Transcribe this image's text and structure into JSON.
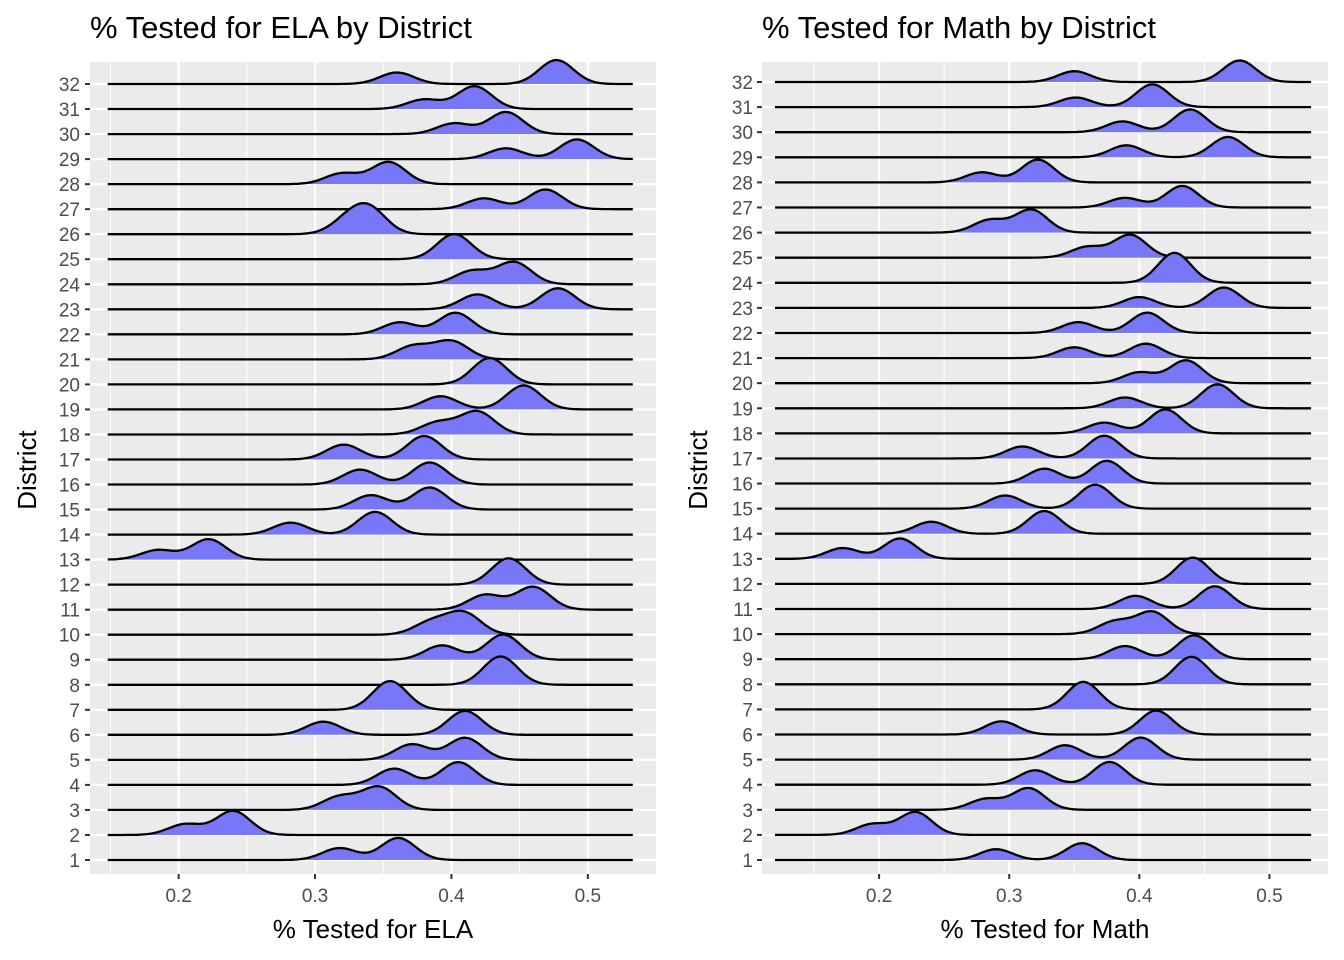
{
  "chart_data": [
    {
      "type": "ridgeline",
      "title": "% Tested for ELA by District",
      "xlabel": "% Tested for ELA",
      "ylabel": "District",
      "xlim": [
        0.135,
        0.55
      ],
      "x_ticks": [
        0.2,
        0.3,
        0.4,
        0.5
      ],
      "x_tick_labels": [
        "0.2",
        "0.3",
        "0.4",
        "0.5"
      ],
      "density_range": [
        0.148,
        0.533
      ],
      "grid": true,
      "fill_color": "#7777f7",
      "districts": [
        "1",
        "2",
        "3",
        "4",
        "5",
        "6",
        "7",
        "8",
        "9",
        "10",
        "11",
        "12",
        "13",
        "14",
        "15",
        "16",
        "17",
        "18",
        "19",
        "20",
        "21",
        "22",
        "23",
        "24",
        "25",
        "26",
        "27",
        "28",
        "29",
        "30",
        "31",
        "32"
      ],
      "series": [
        {
          "district": "1",
          "peaks": [
            {
              "x": 0.318,
              "h": 0.5
            },
            {
              "x": 0.361,
              "h": 0.92
            }
          ]
        },
        {
          "district": "2",
          "peaks": [
            {
              "x": 0.205,
              "h": 0.45
            },
            {
              "x": 0.24,
              "h": 1.0
            }
          ]
        },
        {
          "district": "3",
          "peaks": [
            {
              "x": 0.318,
              "h": 0.55
            },
            {
              "x": 0.347,
              "h": 0.95
            }
          ]
        },
        {
          "district": "4",
          "peaks": [
            {
              "x": 0.358,
              "h": 0.68
            },
            {
              "x": 0.405,
              "h": 0.95
            }
          ]
        },
        {
          "district": "5",
          "peaks": [
            {
              "x": 0.371,
              "h": 0.65
            },
            {
              "x": 0.41,
              "h": 0.92
            }
          ]
        },
        {
          "district": "6",
          "peaks": [
            {
              "x": 0.306,
              "h": 0.55
            },
            {
              "x": 0.41,
              "h": 1.0
            }
          ]
        },
        {
          "district": "7",
          "peaks": [
            {
              "x": 0.355,
              "h": 1.2
            }
          ]
        },
        {
          "district": "8",
          "peaks": [
            {
              "x": 0.436,
              "h": 1.18
            }
          ]
        },
        {
          "district": "9",
          "peaks": [
            {
              "x": 0.393,
              "h": 0.6
            },
            {
              "x": 0.438,
              "h": 1.05
            }
          ]
        },
        {
          "district": "10",
          "peaks": [
            {
              "x": 0.385,
              "h": 0.52
            },
            {
              "x": 0.409,
              "h": 0.9
            }
          ]
        },
        {
          "district": "11",
          "peaks": [
            {
              "x": 0.425,
              "h": 0.62
            },
            {
              "x": 0.46,
              "h": 0.95
            }
          ]
        },
        {
          "district": "12",
          "peaks": [
            {
              "x": 0.442,
              "h": 1.1
            }
          ]
        },
        {
          "district": "13",
          "peaks": [
            {
              "x": 0.185,
              "h": 0.4
            },
            {
              "x": 0.222,
              "h": 0.85
            }
          ]
        },
        {
          "district": "14",
          "peaks": [
            {
              "x": 0.282,
              "h": 0.5
            },
            {
              "x": 0.344,
              "h": 0.95
            }
          ]
        },
        {
          "district": "15",
          "peaks": [
            {
              "x": 0.341,
              "h": 0.6
            },
            {
              "x": 0.384,
              "h": 0.92
            }
          ]
        },
        {
          "district": "16",
          "peaks": [
            {
              "x": 0.333,
              "h": 0.62
            },
            {
              "x": 0.384,
              "h": 0.92
            }
          ]
        },
        {
          "district": "17",
          "peaks": [
            {
              "x": 0.321,
              "h": 0.62
            },
            {
              "x": 0.38,
              "h": 0.98
            }
          ]
        },
        {
          "district": "18",
          "peaks": [
            {
              "x": 0.39,
              "h": 0.5
            },
            {
              "x": 0.419,
              "h": 0.95
            }
          ]
        },
        {
          "district": "19",
          "peaks": [
            {
              "x": 0.392,
              "h": 0.55
            },
            {
              "x": 0.453,
              "h": 1.0
            }
          ]
        },
        {
          "district": "20",
          "peaks": [
            {
              "x": 0.428,
              "h": 1.1
            }
          ]
        },
        {
          "district": "21",
          "peaks": [
            {
              "x": 0.372,
              "h": 0.55
            },
            {
              "x": 0.4,
              "h": 0.75
            }
          ]
        },
        {
          "district": "22",
          "peaks": [
            {
              "x": 0.362,
              "h": 0.5
            },
            {
              "x": 0.403,
              "h": 0.9
            }
          ]
        },
        {
          "district": "23",
          "peaks": [
            {
              "x": 0.419,
              "h": 0.62
            },
            {
              "x": 0.478,
              "h": 0.88
            }
          ]
        },
        {
          "district": "24",
          "peaks": [
            {
              "x": 0.415,
              "h": 0.55
            },
            {
              "x": 0.446,
              "h": 0.92
            }
          ]
        },
        {
          "district": "25",
          "peaks": [
            {
              "x": 0.402,
              "h": 1.05
            }
          ]
        },
        {
          "district": "26",
          "peaks": [
            {
              "x": 0.324,
              "h": 0.55
            },
            {
              "x": 0.34,
              "h": 1.0
            }
          ]
        },
        {
          "district": "27",
          "peaks": [
            {
              "x": 0.424,
              "h": 0.45
            },
            {
              "x": 0.469,
              "h": 0.82
            }
          ]
        },
        {
          "district": "28",
          "peaks": [
            {
              "x": 0.32,
              "h": 0.45
            },
            {
              "x": 0.354,
              "h": 0.92
            }
          ]
        },
        {
          "district": "29",
          "peaks": [
            {
              "x": 0.44,
              "h": 0.45
            },
            {
              "x": 0.492,
              "h": 0.82
            }
          ]
        },
        {
          "district": "30",
          "peaks": [
            {
              "x": 0.402,
              "h": 0.45
            },
            {
              "x": 0.44,
              "h": 0.92
            }
          ]
        },
        {
          "district": "31",
          "peaks": [
            {
              "x": 0.38,
              "h": 0.4
            },
            {
              "x": 0.417,
              "h": 0.95
            }
          ]
        },
        {
          "district": "32",
          "peaks": [
            {
              "x": 0.36,
              "h": 0.48
            },
            {
              "x": 0.477,
              "h": 1.0
            }
          ]
        }
      ]
    },
    {
      "type": "ridgeline",
      "title": "% Tested for Math by District",
      "xlabel": "% Tested for Math",
      "ylabel": "District",
      "xlim": [
        0.11,
        0.545
      ],
      "x_ticks": [
        0.2,
        0.3,
        0.4,
        0.5
      ],
      "x_tick_labels": [
        "0.2",
        "0.3",
        "0.4",
        "0.5"
      ],
      "density_range": [
        0.12,
        0.532
      ],
      "grid": true,
      "fill_color": "#7777f7",
      "districts": [
        "1",
        "2",
        "3",
        "4",
        "5",
        "6",
        "7",
        "8",
        "9",
        "10",
        "11",
        "12",
        "13",
        "14",
        "15",
        "16",
        "17",
        "18",
        "19",
        "20",
        "21",
        "22",
        "23",
        "24",
        "25",
        "26",
        "27",
        "28",
        "29",
        "30",
        "31",
        "32"
      ],
      "series": [
        {
          "district": "1",
          "peaks": [
            {
              "x": 0.29,
              "h": 0.45
            },
            {
              "x": 0.356,
              "h": 0.7
            }
          ]
        },
        {
          "district": "2",
          "peaks": [
            {
              "x": 0.195,
              "h": 0.45
            },
            {
              "x": 0.228,
              "h": 0.95
            }
          ]
        },
        {
          "district": "3",
          "peaks": [
            {
              "x": 0.282,
              "h": 0.45
            },
            {
              "x": 0.315,
              "h": 0.9
            }
          ]
        },
        {
          "district": "4",
          "peaks": [
            {
              "x": 0.32,
              "h": 0.6
            },
            {
              "x": 0.377,
              "h": 0.95
            }
          ]
        },
        {
          "district": "5",
          "peaks": [
            {
              "x": 0.343,
              "h": 0.6
            },
            {
              "x": 0.401,
              "h": 0.92
            }
          ]
        },
        {
          "district": "6",
          "peaks": [
            {
              "x": 0.294,
              "h": 0.55
            },
            {
              "x": 0.413,
              "h": 1.0
            }
          ]
        },
        {
          "district": "7",
          "peaks": [
            {
              "x": 0.357,
              "h": 1.15
            }
          ]
        },
        {
          "district": "8",
          "peaks": [
            {
              "x": 0.44,
              "h": 1.15
            }
          ]
        },
        {
          "district": "9",
          "peaks": [
            {
              "x": 0.389,
              "h": 0.55
            },
            {
              "x": 0.442,
              "h": 1.0
            }
          ]
        },
        {
          "district": "10",
          "peaks": [
            {
              "x": 0.381,
              "h": 0.52
            },
            {
              "x": 0.41,
              "h": 0.92
            }
          ]
        },
        {
          "district": "11",
          "peaks": [
            {
              "x": 0.397,
              "h": 0.55
            },
            {
              "x": 0.458,
              "h": 0.95
            }
          ]
        },
        {
          "district": "12",
          "peaks": [
            {
              "x": 0.441,
              "h": 1.1
            }
          ]
        },
        {
          "district": "13",
          "peaks": [
            {
              "x": 0.172,
              "h": 0.45
            },
            {
              "x": 0.216,
              "h": 0.85
            }
          ]
        },
        {
          "district": "14",
          "peaks": [
            {
              "x": 0.24,
              "h": 0.5
            },
            {
              "x": 0.327,
              "h": 0.95
            }
          ]
        },
        {
          "district": "15",
          "peaks": [
            {
              "x": 0.297,
              "h": 0.55
            },
            {
              "x": 0.366,
              "h": 1.0
            }
          ]
        },
        {
          "district": "16",
          "peaks": [
            {
              "x": 0.327,
              "h": 0.62
            },
            {
              "x": 0.375,
              "h": 0.95
            }
          ]
        },
        {
          "district": "17",
          "peaks": [
            {
              "x": 0.31,
              "h": 0.5
            },
            {
              "x": 0.373,
              "h": 0.95
            }
          ]
        },
        {
          "district": "18",
          "peaks": [
            {
              "x": 0.373,
              "h": 0.45
            },
            {
              "x": 0.42,
              "h": 1.0
            }
          ]
        },
        {
          "district": "19",
          "peaks": [
            {
              "x": 0.389,
              "h": 0.45
            },
            {
              "x": 0.46,
              "h": 1.0
            }
          ]
        },
        {
          "district": "20",
          "peaks": [
            {
              "x": 0.4,
              "h": 0.45
            },
            {
              "x": 0.436,
              "h": 0.95
            }
          ]
        },
        {
          "district": "21",
          "peaks": [
            {
              "x": 0.35,
              "h": 0.45
            },
            {
              "x": 0.405,
              "h": 0.6
            }
          ]
        },
        {
          "district": "22",
          "peaks": [
            {
              "x": 0.353,
              "h": 0.45
            },
            {
              "x": 0.406,
              "h": 0.85
            }
          ]
        },
        {
          "district": "23",
          "peaks": [
            {
              "x": 0.4,
              "h": 0.45
            },
            {
              "x": 0.465,
              "h": 0.85
            }
          ]
        },
        {
          "district": "24",
          "peaks": [
            {
              "x": 0.427,
              "h": 1.25
            }
          ]
        },
        {
          "district": "25",
          "peaks": [
            {
              "x": 0.36,
              "h": 0.45
            },
            {
              "x": 0.393,
              "h": 0.95
            }
          ]
        },
        {
          "district": "26",
          "peaks": [
            {
              "x": 0.285,
              "h": 0.52
            },
            {
              "x": 0.317,
              "h": 0.95
            }
          ]
        },
        {
          "district": "27",
          "peaks": [
            {
              "x": 0.389,
              "h": 0.4
            },
            {
              "x": 0.433,
              "h": 0.9
            }
          ]
        },
        {
          "district": "28",
          "peaks": [
            {
              "x": 0.279,
              "h": 0.42
            },
            {
              "x": 0.322,
              "h": 0.95
            }
          ]
        },
        {
          "district": "29",
          "peaks": [
            {
              "x": 0.39,
              "h": 0.5
            },
            {
              "x": 0.468,
              "h": 0.85
            }
          ]
        },
        {
          "district": "30",
          "peaks": [
            {
              "x": 0.387,
              "h": 0.45
            },
            {
              "x": 0.439,
              "h": 0.95
            }
          ]
        },
        {
          "district": "31",
          "peaks": [
            {
              "x": 0.351,
              "h": 0.4
            },
            {
              "x": 0.41,
              "h": 0.95
            }
          ]
        },
        {
          "district": "32",
          "peaks": [
            {
              "x": 0.35,
              "h": 0.45
            },
            {
              "x": 0.477,
              "h": 0.9
            }
          ]
        }
      ]
    }
  ]
}
